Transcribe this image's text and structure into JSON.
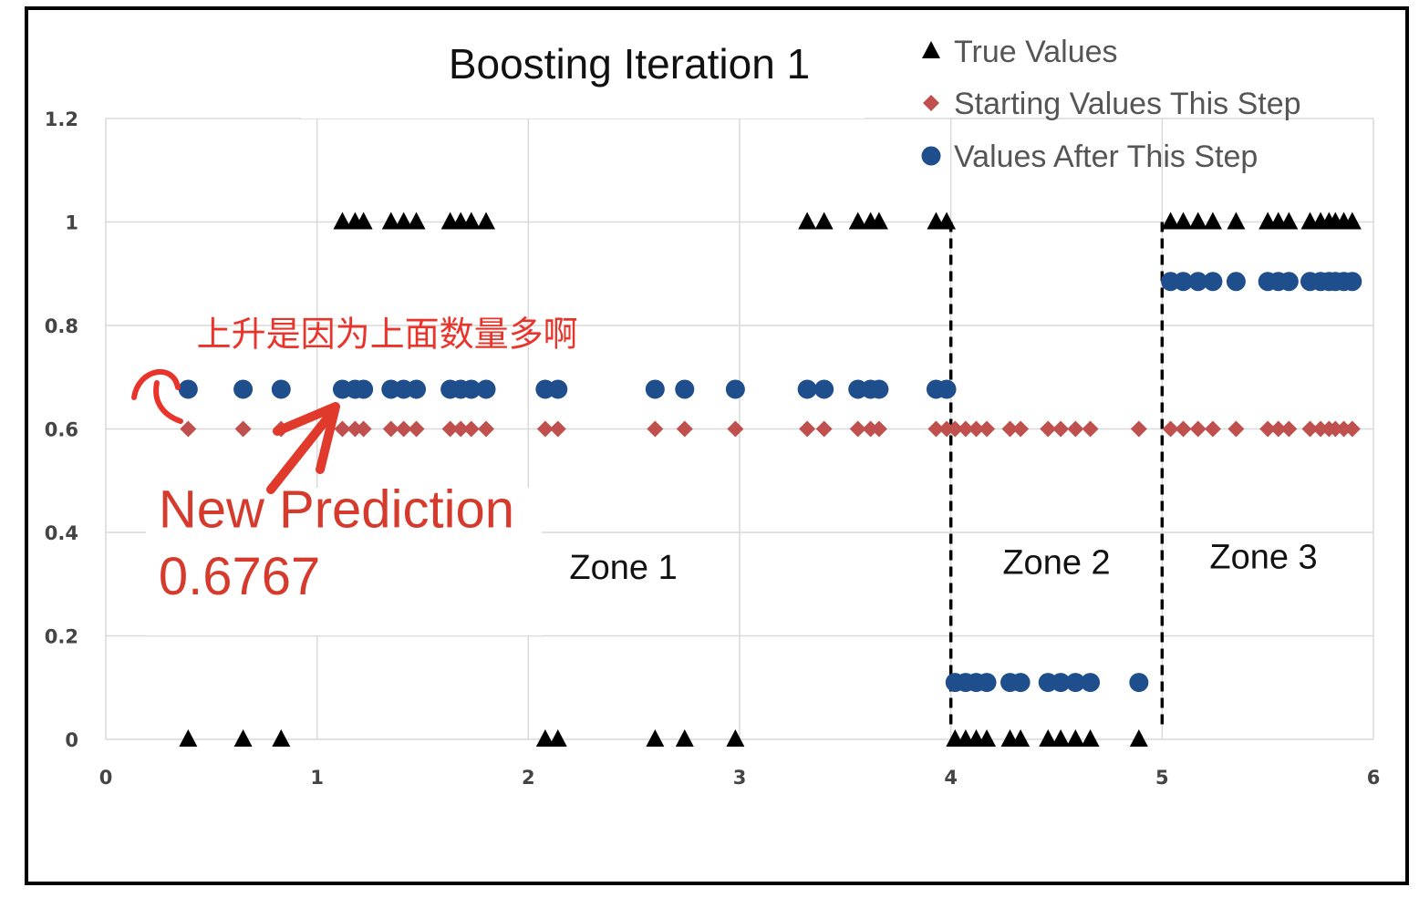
{
  "chart_data": {
    "type": "scatter",
    "title": "Boosting Iteration 1",
    "xlim": [
      0,
      6
    ],
    "ylim": [
      0,
      1.2
    ],
    "x_ticks": [
      "0",
      "1",
      "2",
      "3",
      "4",
      "5",
      "6"
    ],
    "y_ticks": [
      "0",
      "0.2",
      "0.4",
      "0.6",
      "0.8",
      "1",
      "1.2"
    ],
    "grid": true,
    "legend_position": "top-right",
    "colors": {
      "true": "#000000",
      "start": "#c0504d",
      "after": "#1f4e8c",
      "annotation": "#e8342a"
    },
    "x": [
      0.39,
      0.65,
      0.83,
      1.12,
      1.18,
      1.22,
      1.35,
      1.41,
      1.47,
      1.63,
      1.68,
      1.73,
      1.8,
      2.08,
      2.14,
      2.6,
      2.74,
      2.98,
      3.32,
      3.4,
      3.56,
      3.62,
      3.66,
      3.93,
      3.98,
      4.02,
      4.07,
      4.12,
      4.17,
      4.28,
      4.33,
      4.46,
      4.52,
      4.59,
      4.66,
      4.89,
      5.04,
      5.1,
      5.17,
      5.24,
      5.35,
      5.5,
      5.55,
      5.6,
      5.7,
      5.75,
      5.79,
      5.82,
      5.86,
      5.9
    ],
    "series": [
      {
        "name": "True Values",
        "marker": "triangle",
        "values": [
          0,
          0,
          0,
          1,
          1,
          1,
          1,
          1,
          1,
          1,
          1,
          1,
          1,
          0,
          0,
          0,
          0,
          0,
          1,
          1,
          1,
          1,
          1,
          1,
          1,
          0,
          0,
          0,
          0,
          0,
          0,
          0,
          0,
          0,
          0,
          0,
          1,
          1,
          1,
          1,
          1,
          1,
          1,
          1,
          1,
          1,
          1,
          1,
          1,
          1
        ]
      },
      {
        "name": "Starting Values This Step",
        "marker": "diamond",
        "values": [
          0.6,
          0.6,
          0.6,
          0.6,
          0.6,
          0.6,
          0.6,
          0.6,
          0.6,
          0.6,
          0.6,
          0.6,
          0.6,
          0.6,
          0.6,
          0.6,
          0.6,
          0.6,
          0.6,
          0.6,
          0.6,
          0.6,
          0.6,
          0.6,
          0.6,
          0.6,
          0.6,
          0.6,
          0.6,
          0.6,
          0.6,
          0.6,
          0.6,
          0.6,
          0.6,
          0.6,
          0.6,
          0.6,
          0.6,
          0.6,
          0.6,
          0.6,
          0.6,
          0.6,
          0.6,
          0.6,
          0.6,
          0.6,
          0.6,
          0.6
        ]
      },
      {
        "name": "Values After This Step",
        "marker": "circle",
        "values": [
          0.6767,
          0.6767,
          0.6767,
          0.6767,
          0.6767,
          0.6767,
          0.6767,
          0.6767,
          0.6767,
          0.6767,
          0.6767,
          0.6767,
          0.6767,
          0.6767,
          0.6767,
          0.6767,
          0.6767,
          0.6767,
          0.6767,
          0.6767,
          0.6767,
          0.6767,
          0.6767,
          0.6767,
          0.6767,
          0.11,
          0.11,
          0.11,
          0.11,
          0.11,
          0.11,
          0.11,
          0.11,
          0.11,
          0.11,
          0.11,
          0.885,
          0.885,
          0.885,
          0.885,
          0.885,
          0.885,
          0.885,
          0.885,
          0.885,
          0.885,
          0.885,
          0.885,
          0.885,
          0.885
        ]
      }
    ],
    "zone_boundaries": [
      4,
      5
    ],
    "annotations": [
      {
        "text": "Zone 1",
        "x": 2.45,
        "y": 0.31
      },
      {
        "text": "Zone 2",
        "x": 4.5,
        "y": 0.32
      },
      {
        "text": "Zone 3",
        "x": 5.48,
        "y": 0.33
      },
      {
        "text": "上升是因为上面数量多啊",
        "x": 0.43,
        "y": 0.76
      },
      {
        "text": "New Prediction",
        "x": 0.25,
        "y": 0.41
      },
      {
        "text": "0.6767",
        "x": 0.25,
        "y": 0.28
      }
    ]
  }
}
